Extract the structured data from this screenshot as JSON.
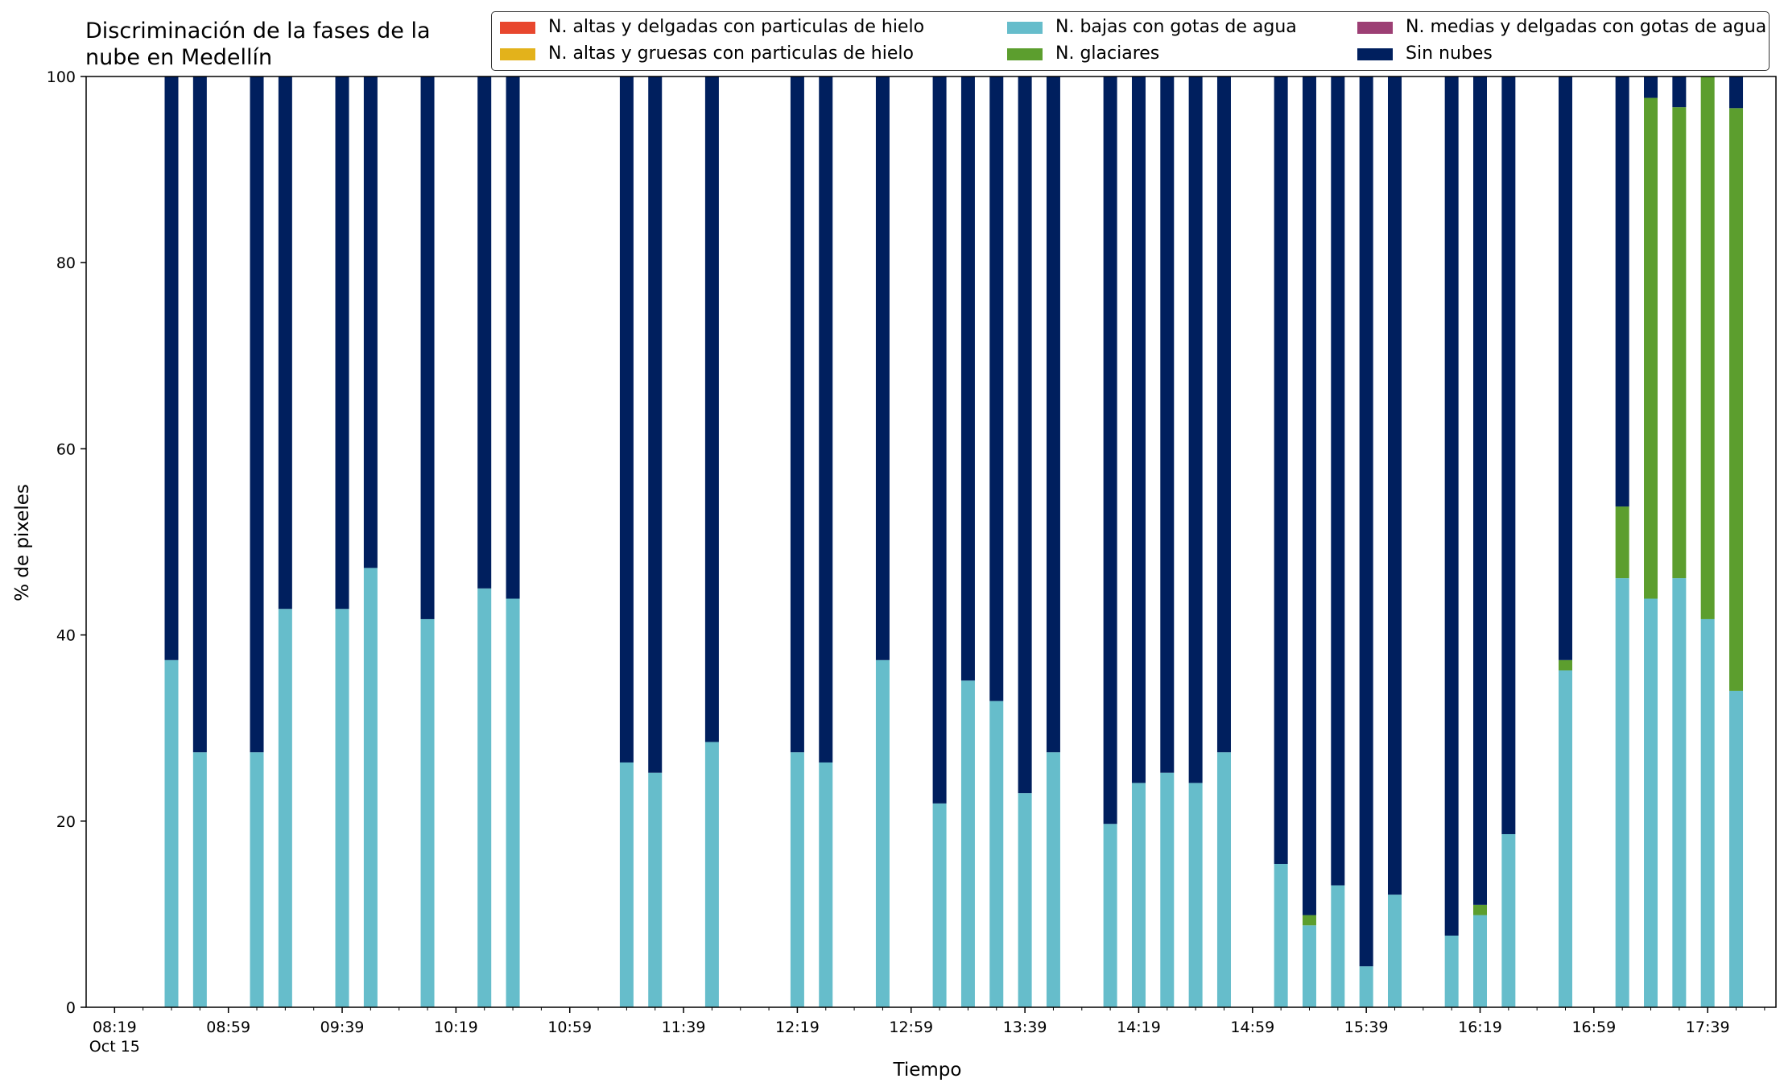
{
  "chart_data": {
    "type": "bar",
    "stacked": true,
    "title": "Discriminación de la fases de la\nnube en Medellín",
    "xlabel": "Tiempo",
    "ylabel": "% de pixeles",
    "ylim": [
      0,
      100
    ],
    "yticks": [
      0,
      20,
      40,
      60,
      80,
      100
    ],
    "xlim_minutes_after_0819": [
      -10,
      584
    ],
    "x_ticks": [
      {
        "t": 0,
        "label": "08:19",
        "sublabel": "Oct 15"
      },
      {
        "t": 40,
        "label": "08:59"
      },
      {
        "t": 80,
        "label": "09:39"
      },
      {
        "t": 120,
        "label": "10:19"
      },
      {
        "t": 160,
        "label": "10:59"
      },
      {
        "t": 200,
        "label": "11:39"
      },
      {
        "t": 240,
        "label": "12:19"
      },
      {
        "t": 280,
        "label": "12:59"
      },
      {
        "t": 320,
        "label": "13:39"
      },
      {
        "t": 360,
        "label": "14:19"
      },
      {
        "t": 400,
        "label": "14:59"
      },
      {
        "t": 440,
        "label": "15:39"
      },
      {
        "t": 480,
        "label": "16:19"
      },
      {
        "t": 520,
        "label": "16:59"
      },
      {
        "t": 560,
        "label": "17:39"
      }
    ],
    "x_minor_tick_step": 10,
    "legend_position": "top-right",
    "series": [
      {
        "name": "N. altas y delgadas con particulas de hielo",
        "color": "#e8472e"
      },
      {
        "name": "N. altas y gruesas con particulas de hielo",
        "color": "#e3b21b"
      },
      {
        "name": "N. bajas con gotas de agua",
        "color": "#66bdcb"
      },
      {
        "name": "N. glaciares",
        "color": "#5c9e2e"
      },
      {
        "name": "N. medias y delgadas con gotas de agua",
        "color": "#9c3f74"
      },
      {
        "name": "Sin nubes",
        "color": "#001f5e"
      }
    ],
    "bars": [
      {
        "time": "08:39",
        "bajas": 37.3,
        "glaciares": 0,
        "sin_nubes": 62.7
      },
      {
        "time": "08:49",
        "bajas": 27.4,
        "glaciares": 0,
        "sin_nubes": 72.6
      },
      {
        "time": "09:09",
        "bajas": 27.4,
        "glaciares": 0,
        "sin_nubes": 72.6
      },
      {
        "time": "09:19",
        "bajas": 42.8,
        "glaciares": 0,
        "sin_nubes": 57.2
      },
      {
        "time": "09:39",
        "bajas": 42.8,
        "glaciares": 0,
        "sin_nubes": 57.2
      },
      {
        "time": "09:49",
        "bajas": 47.2,
        "glaciares": 0,
        "sin_nubes": 52.8
      },
      {
        "time": "10:09",
        "bajas": 41.7,
        "glaciares": 0,
        "sin_nubes": 58.3
      },
      {
        "time": "10:29",
        "bajas": 45.0,
        "glaciares": 0,
        "sin_nubes": 55.0
      },
      {
        "time": "10:39",
        "bajas": 43.9,
        "glaciares": 0,
        "sin_nubes": 56.1
      },
      {
        "time": "11:19",
        "bajas": 26.3,
        "glaciares": 0,
        "sin_nubes": 73.7
      },
      {
        "time": "11:29",
        "bajas": 25.2,
        "glaciares": 0,
        "sin_nubes": 74.8
      },
      {
        "time": "11:49",
        "bajas": 28.5,
        "glaciares": 0,
        "sin_nubes": 71.5
      },
      {
        "time": "12:19",
        "bajas": 27.4,
        "glaciares": 0,
        "sin_nubes": 72.6
      },
      {
        "time": "12:29",
        "bajas": 26.3,
        "glaciares": 0,
        "sin_nubes": 73.7
      },
      {
        "time": "12:49",
        "bajas": 37.3,
        "glaciares": 0,
        "sin_nubes": 62.7
      },
      {
        "time": "13:09",
        "bajas": 21.9,
        "glaciares": 0,
        "sin_nubes": 78.1
      },
      {
        "time": "13:19",
        "bajas": 35.1,
        "glaciares": 0,
        "sin_nubes": 64.9
      },
      {
        "time": "13:29",
        "bajas": 32.9,
        "glaciares": 0,
        "sin_nubes": 67.1
      },
      {
        "time": "13:39",
        "bajas": 23.0,
        "glaciares": 0,
        "sin_nubes": 77.0
      },
      {
        "time": "13:49",
        "bajas": 27.4,
        "glaciares": 0,
        "sin_nubes": 72.6
      },
      {
        "time": "14:09",
        "bajas": 19.7,
        "glaciares": 0,
        "sin_nubes": 80.3
      },
      {
        "time": "14:19",
        "bajas": 24.1,
        "glaciares": 0,
        "sin_nubes": 75.9
      },
      {
        "time": "14:29",
        "bajas": 25.2,
        "glaciares": 0,
        "sin_nubes": 74.8
      },
      {
        "time": "14:39",
        "bajas": 24.1,
        "glaciares": 0,
        "sin_nubes": 75.9
      },
      {
        "time": "14:49",
        "bajas": 27.4,
        "glaciares": 0,
        "sin_nubes": 72.6
      },
      {
        "time": "15:09",
        "bajas": 15.4,
        "glaciares": 0,
        "sin_nubes": 84.6
      },
      {
        "time": "15:19",
        "bajas": 8.8,
        "glaciares": 1.1,
        "sin_nubes": 90.1
      },
      {
        "time": "15:29",
        "bajas": 13.1,
        "glaciares": 0,
        "sin_nubes": 86.9
      },
      {
        "time": "15:39",
        "bajas": 4.4,
        "glaciares": 0,
        "sin_nubes": 95.6
      },
      {
        "time": "15:49",
        "bajas": 12.1,
        "glaciares": 0,
        "sin_nubes": 87.9
      },
      {
        "time": "16:09",
        "bajas": 7.7,
        "glaciares": 0,
        "sin_nubes": 92.3
      },
      {
        "time": "16:19",
        "bajas": 9.9,
        "glaciares": 1.1,
        "sin_nubes": 89.0
      },
      {
        "time": "16:29",
        "bajas": 18.6,
        "glaciares": 0,
        "sin_nubes": 81.4
      },
      {
        "time": "16:49",
        "bajas": 36.2,
        "glaciares": 1.1,
        "sin_nubes": 62.7
      },
      {
        "time": "17:09",
        "bajas": 46.1,
        "glaciares": 7.7,
        "sin_nubes": 46.2
      },
      {
        "time": "17:19",
        "bajas": 43.9,
        "glaciares": 53.8,
        "sin_nubes": 2.3
      },
      {
        "time": "17:29",
        "bajas": 46.1,
        "glaciares": 50.6,
        "sin_nubes": 3.3
      },
      {
        "time": "17:39",
        "bajas": 41.7,
        "glaciares": 58.3,
        "sin_nubes": 0
      },
      {
        "time": "17:49",
        "bajas": 34.0,
        "glaciares": 62.6,
        "sin_nubes": 3.4
      }
    ]
  }
}
